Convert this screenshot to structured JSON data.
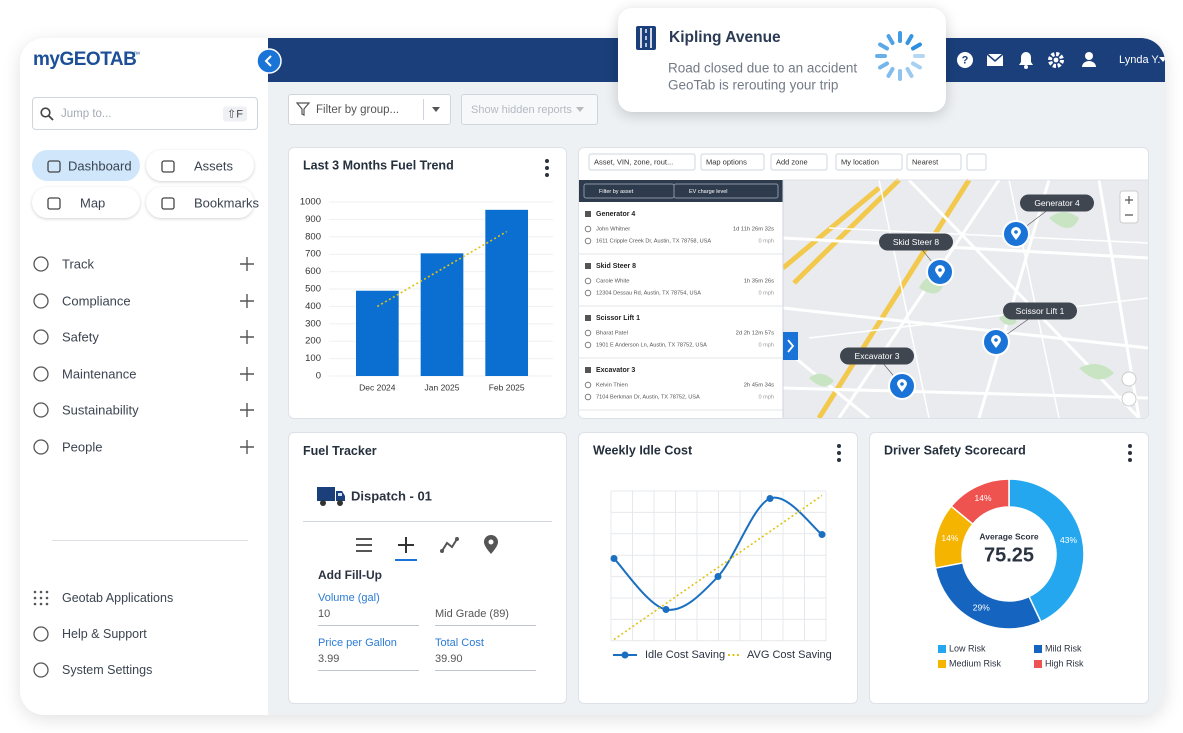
{
  "sidebar": {
    "logo": "myGEOTAB",
    "trademark": "™",
    "search_placeholder": "Jump to...",
    "search_shortcut": "⇧F",
    "quick_links": [
      "Dashboard",
      "Assets",
      "Map",
      "Bookmarks"
    ],
    "menu": [
      "Track",
      "Compliance",
      "Safety",
      "Maintenance",
      "Sustainability",
      "People"
    ],
    "footer_links": [
      "Geotab Applications",
      "Help & Support",
      "System Settings"
    ]
  },
  "top_bar": {
    "user": "Lynda Y."
  },
  "notification": {
    "title": "Kipling Avenue",
    "lines": [
      "Road closed due to an accident",
      "GeoTab is rerouting your trip"
    ]
  },
  "filters": {
    "group": "Filter by group...",
    "hidden_reports": "Show hidden reports"
  },
  "chart_data": [
    {
      "type": "bar",
      "title": "Last 3 Months Fuel Trend",
      "categories": [
        "Dec 2024",
        "Jan 2025",
        "Feb 2025"
      ],
      "series": [
        {
          "color": "#0b6ed1",
          "values": [
            490,
            705,
            955
          ]
        },
        {
          "type": "line",
          "color": "#e0c313",
          "values": [
            400,
            615,
            830
          ]
        }
      ],
      "ylim": [
        0,
        1000
      ],
      "yticks": [
        0,
        100,
        200,
        300,
        400,
        500,
        600,
        700,
        800,
        900,
        1000
      ],
      "grid": true
    },
    {
      "type": "line",
      "title": "Weekly Idle Cost",
      "ylim": [
        0,
        100
      ],
      "series": [
        {
          "name": "Idle Cost Saving",
          "color": "#1a6fc0",
          "values": [
            55,
            21,
            43,
            95,
            71
          ],
          "smooth": true,
          "markers": true
        },
        {
          "name": "AVG Cost Saving",
          "color": "#e0c313",
          "values": [
            1,
            25,
            49,
            73,
            97
          ],
          "dashed": true
        }
      ]
    },
    {
      "type": "pie",
      "title": "Driver Safety Scorecard",
      "donut": true,
      "center_label": "Average Score",
      "center_value": 75.25,
      "categories": [
        "Low Risk",
        "Mild Risk",
        "Medium Risk",
        "High Risk"
      ],
      "values": [
        43,
        29,
        14,
        14
      ],
      "value_labels": [
        "43%",
        "29%",
        "14%",
        "14%"
      ],
      "colors": [
        "#25a7ef",
        "#1565c0",
        "#f4b400",
        "#ef5350"
      ]
    }
  ],
  "map_panel": {
    "search": "Asset, VIN, zone, rout...",
    "buttons": [
      "Map options",
      "Add zone",
      "My location",
      "Nearest"
    ],
    "list_filters": [
      "Filter by asset",
      "EV charge level"
    ],
    "assets": [
      {
        "name": "Generator 4",
        "driver": "John Whitner",
        "duration": "1d 11h 26m 32s",
        "address": "1611 Cripple Creek Dr, Austin, TX 78758, USA",
        "speed": "0 mph"
      },
      {
        "name": "Skid Steer 8",
        "driver": "Carole White",
        "duration": "1h 35m 26s",
        "address": "12304 Dessau Rd, Austin, TX 78754, USA",
        "speed": "0 mph"
      },
      {
        "name": "Scissor Lift 1",
        "driver": "Bharat Patel",
        "duration": "2d 2h 12m 57s",
        "address": "1901 E Anderson Ln, Austin, TX 78752, USA",
        "speed": "0 mph"
      },
      {
        "name": "Excavator 3",
        "driver": "Kelvin Thien",
        "duration": "2h 45m 34s",
        "address": "7104 Berkman Dr, Austin, TX 78752, USA",
        "speed": "0 mph"
      }
    ],
    "pins": [
      "Generator 4",
      "Skid Steer 8",
      "Scissor Lift 1",
      "Excavator 3"
    ]
  },
  "fuel_tracker": {
    "title": "Fuel Tracker",
    "vehicle": "Dispatch - 01",
    "section": "Add Fill-Up",
    "fields": [
      {
        "label": "Volume (gal)",
        "value": "10"
      },
      {
        "value": "Mid Grade (89)"
      },
      {
        "label": "Price per Gallon",
        "value": "3.99"
      },
      {
        "label": "Total Cost",
        "value": "39.90"
      }
    ]
  }
}
